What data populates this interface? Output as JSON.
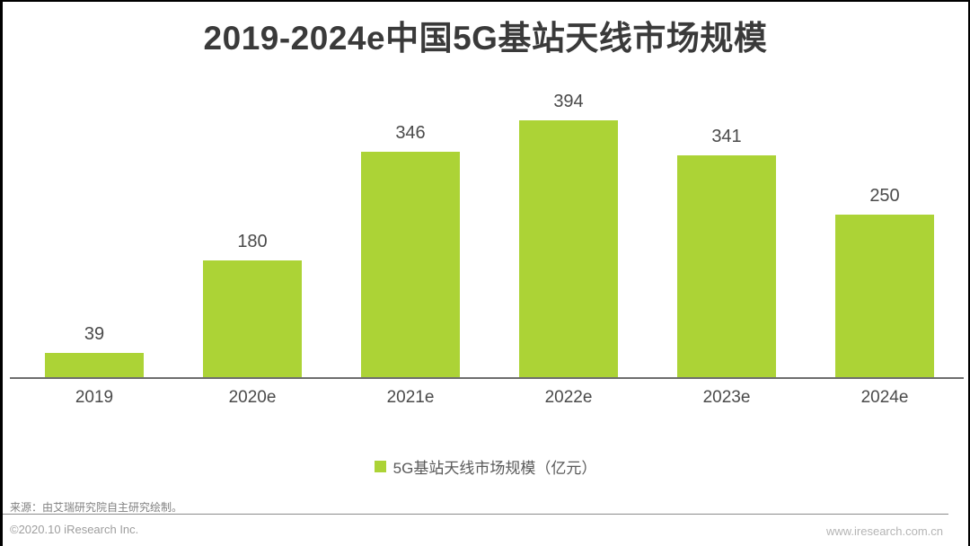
{
  "page": {
    "title": "2019-2024e中国5G基站天线市场规模"
  },
  "chart_data": {
    "type": "bar",
    "title": "2019-2024e中国5G基站天线市场规模",
    "categories": [
      "2019",
      "2020e",
      "2021e",
      "2022e",
      "2023e",
      "2024e"
    ],
    "values": [
      39,
      180,
      346,
      394,
      341,
      250
    ],
    "series_name": "5G基站天线市场规模（亿元）",
    "unit": "亿元",
    "bar_color": "#acd336",
    "value_label_color": "#4a4a4a",
    "xlabel": "",
    "ylabel": "",
    "ylim": [
      0,
      394
    ],
    "grid": false,
    "legend_position": "bottom"
  },
  "legend": {
    "label": "5G基站天线市场规模（亿元）",
    "swatch_color": "#acd336"
  },
  "footer": {
    "source": "来源：由艾瑞研究院自主研究绘制。",
    "copyright": "©2020.10 iResearch Inc.",
    "website": "www.iresearch.com.cn"
  }
}
